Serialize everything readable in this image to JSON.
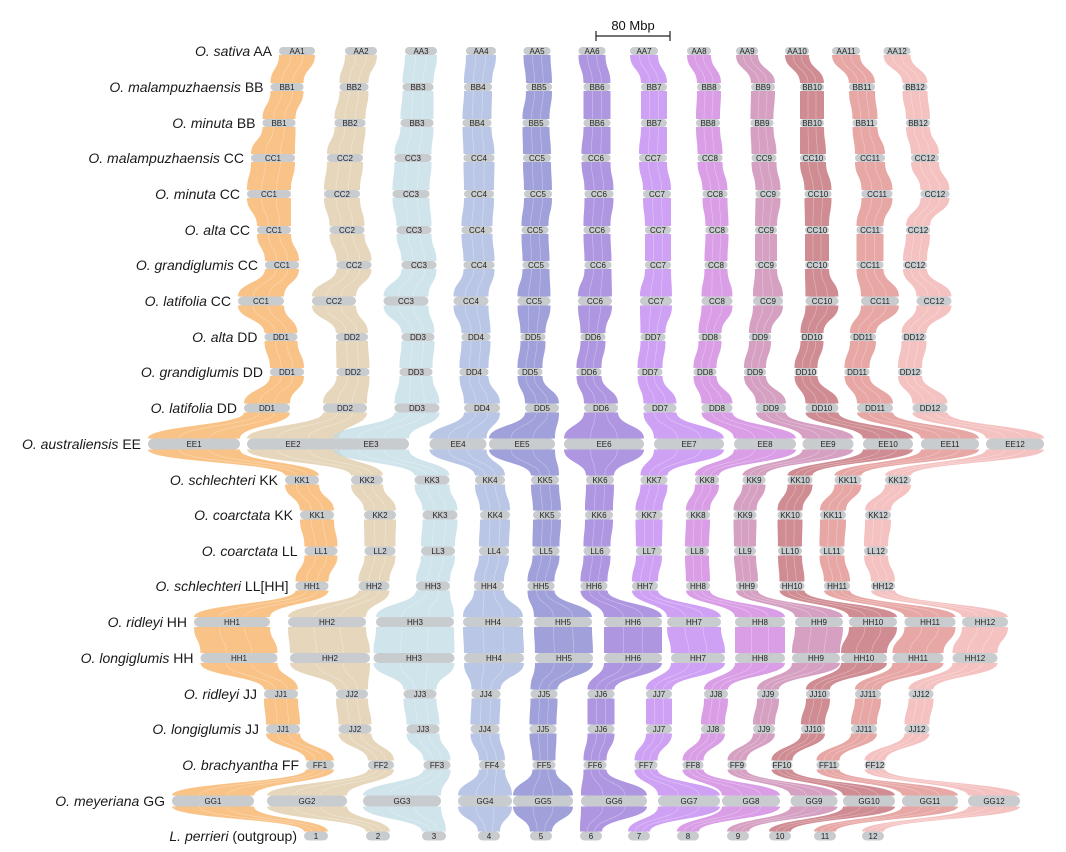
{
  "scale_bar": {
    "label": "80 Mbp"
  },
  "colors": [
    "#f6ab58",
    "#ddc8a2",
    "#bcdae3",
    "#9eb0dc",
    "#7c7bcc",
    "#8f6ed6",
    "#bb7df0",
    "#cb79dd",
    "#c57cab",
    "#bc6069",
    "#de8582",
    "#f0aaa9"
  ],
  "link_opacity": 0.72,
  "genomes": [
    {
      "species": "O. sativa",
      "genome": "AA",
      "chromosomes": [
        "AA1",
        "AA2",
        "AA3",
        "AA4",
        "AA5",
        "AA6",
        "AA7",
        "AA8",
        "AA9",
        "AA10",
        "AA11",
        "AA12"
      ]
    },
    {
      "species": "O. malampuzhaensis",
      "genome": "BB",
      "chromosomes": [
        "BB1",
        "BB2",
        "BB3",
        "BB4",
        "BB5",
        "BB6",
        "BB7",
        "BB8",
        "BB9",
        "BB10",
        "BB11",
        "BB12"
      ]
    },
    {
      "species": "O. minuta",
      "genome": "BB",
      "chromosomes": [
        "BB1",
        "BB2",
        "BB3",
        "BB4",
        "BB5",
        "BB6",
        "BB7",
        "BB8",
        "BB9",
        "BB10",
        "BB11",
        "BB12"
      ]
    },
    {
      "species": "O. malampuzhaensis",
      "genome": "CC",
      "chromosomes": [
        "CC1",
        "CC2",
        "CC3",
        "CC4",
        "CC5",
        "CC6",
        "CC7",
        "CC8",
        "CC9",
        "CC10",
        "CC11",
        "CC12"
      ]
    },
    {
      "species": "O. minuta",
      "genome": "CC",
      "chromosomes": [
        "CC1",
        "CC2",
        "CC3",
        "CC4",
        "CC5",
        "CC6",
        "CC7",
        "CC8",
        "CC9",
        "CC10",
        "CC11",
        "CC12"
      ]
    },
    {
      "species": "O. alta",
      "genome": "CC",
      "chromosomes": [
        "CC1",
        "CC2",
        "CC3",
        "CC4",
        "CC5",
        "CC6",
        "CC7",
        "CC8",
        "CC9",
        "CC10",
        "CC11",
        "CC12"
      ]
    },
    {
      "species": "O. grandiglumis",
      "genome": "CC",
      "chromosomes": [
        "CC1",
        "CC2",
        "CC3",
        "CC4",
        "CC5",
        "CC6",
        "CC7",
        "CC8",
        "CC9",
        "CC10",
        "CC11",
        "CC12"
      ]
    },
    {
      "species": "O. latifolia",
      "genome": "CC",
      "chromosomes": [
        "CC1",
        "CC2",
        "CC3",
        "CC4",
        "CC5",
        "CC6",
        "CC7",
        "CC8",
        "CC9",
        "CC10",
        "CC11",
        "CC12"
      ]
    },
    {
      "species": "O. alta",
      "genome": "DD",
      "chromosomes": [
        "DD1",
        "DD2",
        "DD3",
        "DD4",
        "DD5",
        "DD6",
        "DD7",
        "DD8",
        "DD9",
        "DD10",
        "DD11",
        "DD12"
      ]
    },
    {
      "species": "O. grandiglumis",
      "genome": "DD",
      "chromosomes": [
        "DD1",
        "DD2",
        "DD3",
        "DD4",
        "DD5",
        "DD6",
        "DD7",
        "DD8",
        "DD9",
        "DD10",
        "DD11",
        "DD12"
      ]
    },
    {
      "species": "O. latifolia",
      "genome": "DD",
      "chromosomes": [
        "DD1",
        "DD2",
        "DD3",
        "DD4",
        "DD5",
        "DD6",
        "DD7",
        "DD8",
        "DD9",
        "DD10",
        "DD11",
        "DD12"
      ]
    },
    {
      "species": "O. australiensis",
      "genome": "EE",
      "chromosomes": [
        "EE1",
        "EE2",
        "EE3",
        "EE4",
        "EE5",
        "EE6",
        "EE7",
        "EE8",
        "EE9",
        "EE10",
        "EE11",
        "EE12"
      ]
    },
    {
      "species": "O. schlechteri",
      "genome": "KK",
      "chromosomes": [
        "KK1",
        "KK2",
        "KK3",
        "KK4",
        "KK5",
        "KK6",
        "KK7",
        "KK8",
        "KK9",
        "KK10",
        "KK11",
        "KK12"
      ]
    },
    {
      "species": "O. coarctata",
      "genome": "KK",
      "chromosomes": [
        "KK1",
        "KK2",
        "KK3",
        "KK4",
        "KK5",
        "KK6",
        "KK7",
        "KK8",
        "KK9",
        "KK10",
        "KK11",
        "KK12"
      ]
    },
    {
      "species": "O. coarctata",
      "genome": "LL",
      "chromosomes": [
        "LL1",
        "LL2",
        "LL3",
        "LL4",
        "LL5",
        "LL6",
        "LL7",
        "LL8",
        "LL9",
        "LL10",
        "LL11",
        "LL12"
      ]
    },
    {
      "species": "O. schlechteri",
      "genome": "LL[HH]",
      "chromosomes": [
        "HH1",
        "HH2",
        "HH3",
        "HH4",
        "HH5",
        "HH6",
        "HH7",
        "HH8",
        "HH9",
        "HH10",
        "HH11",
        "HH12"
      ]
    },
    {
      "species": "O. ridleyi",
      "genome": "HH",
      "chromosomes": [
        "HH1",
        "HH2",
        "HH3",
        "HH4",
        "HH5",
        "HH6",
        "HH7",
        "HH8",
        "HH9",
        "HH10",
        "HH11",
        "HH12"
      ]
    },
    {
      "species": "O. longiglumis",
      "genome": "HH",
      "chromosomes": [
        "HH1",
        "HH2",
        "HH3",
        "HH4",
        "HH5",
        "HH6",
        "HH7",
        "HH8",
        "HH9",
        "HH10",
        "HH11",
        "HH12"
      ]
    },
    {
      "species": "O. ridleyi",
      "genome": "JJ",
      "chromosomes": [
        "JJ1",
        "JJ2",
        "JJ3",
        "JJ4",
        "JJ5",
        "JJ6",
        "JJ7",
        "JJ8",
        "JJ9",
        "JJ10",
        "JJ11",
        "JJ12"
      ]
    },
    {
      "species": "O. longiglumis",
      "genome": "JJ",
      "chromosomes": [
        "JJ1",
        "JJ2",
        "JJ3",
        "JJ4",
        "JJ5",
        "JJ6",
        "JJ7",
        "JJ8",
        "JJ9",
        "JJ10",
        "JJ11",
        "JJ12"
      ]
    },
    {
      "species": "O. brachyantha",
      "genome": "FF",
      "chromosomes": [
        "FF1",
        "FF2",
        "FF3",
        "FF4",
        "FF5",
        "FF6",
        "FF7",
        "FF8",
        "FF9",
        "FF10",
        "FF11",
        "FF12"
      ]
    },
    {
      "species": "O. meyeriana",
      "genome": "GG",
      "chromosomes": [
        "GG1",
        "GG2",
        "GG3",
        "GG4",
        "GG5",
        "GG6",
        "GG7",
        "GG8",
        "GG9",
        "GG10",
        "GG11",
        "GG12"
      ]
    },
    {
      "species": "L. perrieri",
      "genome": "(outgroup)",
      "chromosomes": [
        "1",
        "2",
        "3",
        "4",
        "5",
        "6",
        "7",
        "8",
        "9",
        "10",
        "11",
        "12"
      ]
    }
  ]
}
